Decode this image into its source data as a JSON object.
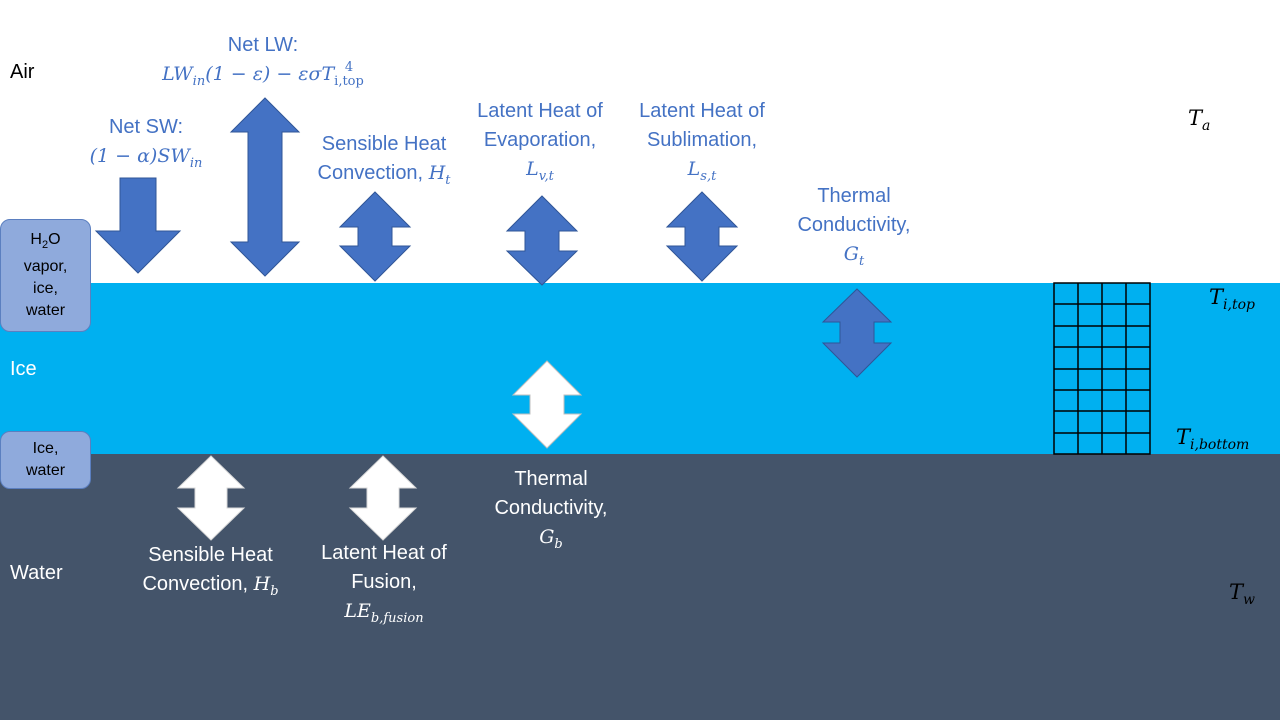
{
  "layers": {
    "air": "Air",
    "ice": "Ice",
    "water": "Water"
  },
  "side_boxes": {
    "top": {
      "line1_pre": "H",
      "line1_sub": "2",
      "line1_post": "O",
      "line2": "vapor,",
      "line3": "ice,",
      "line4": "water"
    },
    "bottom": {
      "line1": "Ice,",
      "line2": "water"
    }
  },
  "fluxes": {
    "net_sw": {
      "label": "Net SW:",
      "formula": "(1 − α)SW",
      "formula_sub": "in"
    },
    "net_lw": {
      "label": "Net LW:",
      "formula_a": "LW",
      "formula_a_sub": "in",
      "formula_b": "(1 − ε) − εσT",
      "formula_b_sup": "4",
      "formula_b_sub": "i,top"
    },
    "sensible_top": {
      "line1": "Sensible Heat",
      "line2": "Convection,",
      "sym": "H",
      "sym_sub": "t"
    },
    "latent_evap": {
      "line1": "Latent Heat of",
      "line2": "Evaporation,",
      "sym": "L",
      "sym_sub": "v,t"
    },
    "latent_subl": {
      "line1": "Latent Heat of",
      "line2": "Sublimation,",
      "sym": "L",
      "sym_sub": "s,t"
    },
    "thermal_top": {
      "line1": "Thermal",
      "line2": "Conductivity,",
      "sym": "G",
      "sym_sub": "t"
    },
    "thermal_bottom": {
      "line1": "Thermal",
      "line2": "Conductivity,",
      "sym": "G",
      "sym_sub": "b"
    },
    "sensible_bottom": {
      "line1": "Sensible Heat",
      "line2": "Convection,",
      "sym": "H",
      "sym_sub": "b"
    },
    "latent_fusion": {
      "line1": "Latent Heat of",
      "line2": "Fusion,",
      "sym": "LE",
      "sym_sub": "b,fusion"
    }
  },
  "temperatures": {
    "air": {
      "sym": "T",
      "sub": "a"
    },
    "ice_top": {
      "sym": "T",
      "sub": "i,top"
    },
    "ice_bottom": {
      "sym": "T",
      "sub": "i,bottom"
    },
    "water": {
      "sym": "T",
      "sub": "w"
    }
  },
  "colors": {
    "ice": "#00b0f0",
    "water": "#44546a",
    "arrow_blue": "#4472c4",
    "arrow_white": "#ffffff",
    "side_box": "#8faadc"
  },
  "grid": {
    "columns": 4,
    "rows": 8
  }
}
